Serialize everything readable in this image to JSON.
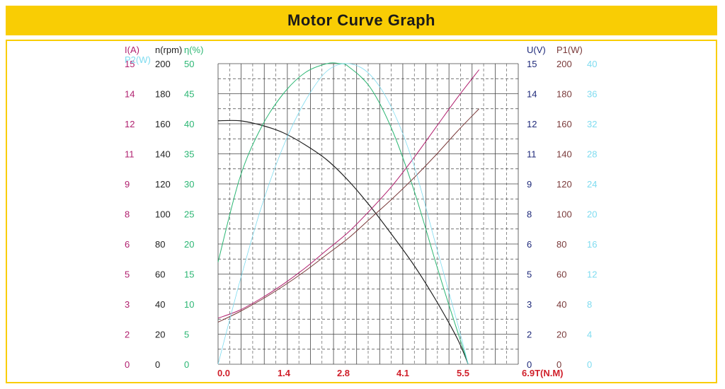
{
  "header": {
    "title": "Motor Curve Graph"
  },
  "colors": {
    "current": "#b01f6e",
    "speed": "#222222",
    "efficiency": "#2bb673",
    "voltage": "#1f2a7a",
    "input_power": "#7a3a3a",
    "output_power": "#7fdcf0",
    "x_axis": "#d01f2a",
    "banner": "#f9cd04"
  },
  "chart_data": {
    "type": "line",
    "title": "Motor Curve Graph",
    "grid": true,
    "x_axis": {
      "label": "T(N.M)",
      "ticks": [
        "0.0",
        "1.4",
        "2.8",
        "4.1",
        "5.5",
        "6.9"
      ],
      "range": [
        0,
        6.9
      ]
    },
    "left_axes": [
      {
        "key": "current",
        "label": "I(A)",
        "ticks": [
          "0",
          "2",
          "3",
          "5",
          "6",
          "8",
          "9",
          "11",
          "12",
          "14",
          "15"
        ]
      },
      {
        "key": "speed",
        "label": "n(rpm)",
        "ticks": [
          "0",
          "20",
          "40",
          "60",
          "80",
          "100",
          "120",
          "140",
          "160",
          "180",
          "200"
        ]
      },
      {
        "key": "efficiency",
        "label": "η(%)",
        "ticks": [
          "0",
          "5",
          "10",
          "15",
          "20",
          "25",
          "30",
          "35",
          "40",
          "45",
          "50"
        ]
      }
    ],
    "left_extra_label": {
      "key": "output_power",
      "label": "P2(W)"
    },
    "right_axes": [
      {
        "key": "voltage",
        "label": "U(V)",
        "ticks": [
          "0",
          "2",
          "3",
          "5",
          "6",
          "8",
          "9",
          "11",
          "12",
          "14",
          "15"
        ]
      },
      {
        "key": "input_power",
        "label": "P1(W)",
        "ticks": [
          "0",
          "20",
          "40",
          "60",
          "80",
          "100",
          "120",
          "140",
          "160",
          "180",
          "200"
        ]
      },
      {
        "key": "output_power",
        "label": "",
        "ticks": [
          "0",
          "4",
          "8",
          "12",
          "16",
          "20",
          "24",
          "28",
          "32",
          "36",
          "40"
        ]
      }
    ],
    "series": [
      {
        "key": "speed",
        "unit": "rpm",
        "x": [
          0,
          0.5,
          1.0,
          1.5,
          2.0,
          2.5,
          3.0,
          3.5,
          4.0,
          4.5,
          5.0,
          5.5,
          5.75
        ],
        "values": [
          162,
          162,
          159,
          154,
          146,
          136,
          122,
          105,
          86,
          66,
          43,
          17,
          0
        ]
      },
      {
        "key": "efficiency",
        "unit": "%",
        "x": [
          0,
          0.5,
          1.0,
          1.5,
          2.0,
          2.5,
          2.8,
          3.0,
          3.5,
          4.0,
          4.5,
          5.0,
          5.3,
          5.75
        ],
        "values": [
          17,
          31,
          39.5,
          45,
          48.5,
          50,
          50,
          49.5,
          46,
          39,
          29,
          17,
          10,
          0
        ]
      },
      {
        "key": "current",
        "unit": "A",
        "x": [
          0,
          0.5,
          1.0,
          1.5,
          2.0,
          2.5,
          3.0,
          3.5,
          4.0,
          4.5,
          5.0,
          5.5,
          6.0
        ],
        "values": [
          2.3,
          2.7,
          3.3,
          4.0,
          4.8,
          5.7,
          6.6,
          7.7,
          8.9,
          10.3,
          11.8,
          13.3,
          14.7
        ]
      },
      {
        "key": "input_power",
        "unit": "W",
        "x": [
          0,
          0.5,
          1.0,
          1.5,
          2.0,
          2.5,
          3.0,
          3.5,
          4.0,
          4.5,
          5.0,
          5.5,
          6.0
        ],
        "values": [
          28,
          35,
          43,
          52,
          62,
          73,
          84,
          97,
          110,
          124,
          139,
          155,
          170
        ]
      },
      {
        "key": "output_power",
        "unit": "W",
        "x": [
          0,
          0.5,
          1.0,
          1.5,
          2.0,
          2.5,
          3.0,
          3.5,
          4.0,
          4.5,
          5.0,
          5.5,
          5.75
        ],
        "values": [
          0,
          11,
          21,
          29,
          35,
          39,
          40,
          38.5,
          34,
          26.5,
          16,
          5.5,
          0
        ]
      }
    ]
  }
}
